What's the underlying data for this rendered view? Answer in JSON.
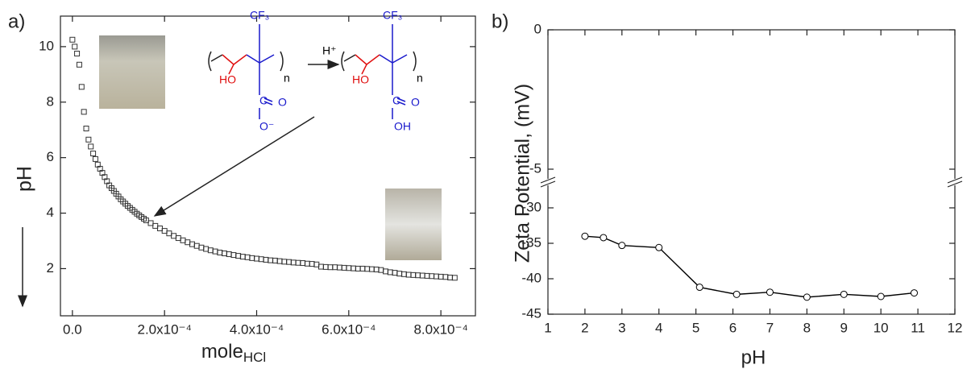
{
  "chart_data": [
    {
      "type": "scatter",
      "panel_label": "a)",
      "xlabel": {
        "text": "mole",
        "subscript": "HCl"
      },
      "ylabel": "pH",
      "xlim": [
        -2.6e-05,
        0.000875
      ],
      "ylim": [
        0.3,
        11.1
      ],
      "xticks": [
        {
          "value": 0,
          "label": "0.0"
        },
        {
          "value": 0.0002,
          "label": "2.0x10⁻⁴"
        },
        {
          "value": 0.0004,
          "label": "4.0x10⁻⁴"
        },
        {
          "value": 0.0006,
          "label": "6.0x10⁻⁴"
        },
        {
          "value": 0.0008,
          "label": "8.0x10⁻⁴"
        }
      ],
      "yticks": [
        2,
        4,
        6,
        8,
        10
      ],
      "marker": "square",
      "color": "#333333",
      "x": [
        0,
        5e-06,
        1e-05,
        1.5e-05,
        2e-05,
        2.5e-05,
        3e-05,
        3.5e-05,
        4e-05,
        4.5e-05,
        5e-05,
        5.5e-05,
        6e-05,
        6.5e-05,
        7e-05,
        7.5e-05,
        8e-05,
        8.5e-05,
        9e-05,
        9.5e-05,
        0.0001,
        0.000105,
        0.00011,
        0.000115,
        0.00012,
        0.000125,
        0.00013,
        0.000135,
        0.00014,
        0.000145,
        0.00015,
        0.000155,
        0.00016,
        0.00017,
        0.00018,
        0.00019,
        0.0002,
        0.00021,
        0.00022,
        0.00023,
        0.00024,
        0.00025,
        0.00026,
        0.00027,
        0.00028,
        0.00029,
        0.0003,
        0.00031,
        0.00032,
        0.00033,
        0.00034,
        0.00035,
        0.00036,
        0.00037,
        0.00038,
        0.00039,
        0.0004,
        0.00041,
        0.00042,
        0.00043,
        0.00044,
        0.00045,
        0.00046,
        0.00047,
        0.00048,
        0.00049,
        0.0005,
        0.00051,
        0.00052,
        0.00053,
        0.00054,
        0.00055,
        0.00056,
        0.00057,
        0.00058,
        0.00059,
        0.0006,
        0.00061,
        0.00062,
        0.00063,
        0.00064,
        0.00065,
        0.00066,
        0.00067,
        0.00068,
        0.00069,
        0.0007,
        0.00071,
        0.00072,
        0.00073,
        0.00074,
        0.00075,
        0.00076,
        0.00077,
        0.00078,
        0.00079,
        0.0008,
        0.00081,
        0.00082,
        0.00083
      ],
      "values": [
        10.25,
        10.0,
        9.75,
        9.35,
        8.55,
        7.65,
        7.05,
        6.65,
        6.4,
        6.15,
        5.95,
        5.75,
        5.6,
        5.45,
        5.3,
        5.15,
        5.0,
        4.9,
        4.8,
        4.7,
        4.6,
        4.5,
        4.42,
        4.34,
        4.26,
        4.19,
        4.12,
        4.05,
        3.98,
        3.92,
        3.86,
        3.8,
        3.74,
        3.64,
        3.54,
        3.45,
        3.36,
        3.27,
        3.18,
        3.1,
        3.02,
        2.95,
        2.88,
        2.82,
        2.76,
        2.71,
        2.66,
        2.62,
        2.58,
        2.55,
        2.52,
        2.49,
        2.46,
        2.43,
        2.41,
        2.38,
        2.36,
        2.34,
        2.32,
        2.3,
        2.29,
        2.27,
        2.25,
        2.24,
        2.22,
        2.21,
        2.2,
        2.18,
        2.17,
        2.15,
        2.07,
        2.06,
        2.05,
        2.05,
        2.04,
        2.03,
        2.02,
        2.01,
        2.0,
        2.0,
        1.99,
        1.98,
        1.97,
        1.95,
        1.9,
        1.87,
        1.85,
        1.82,
        1.8,
        1.78,
        1.77,
        1.76,
        1.75,
        1.74,
        1.73,
        1.72,
        1.71,
        1.7,
        1.68,
        1.67
      ],
      "annotations": [
        {
          "text": "CF₃",
          "color": "#1a1acc"
        },
        {
          "text": "HO",
          "color": "#e01010"
        },
        {
          "text": "C",
          "color": "#1a1acc"
        },
        {
          "text": "O",
          "color": "#1a1acc"
        },
        {
          "text": "O⁻",
          "color": "#1a1acc"
        },
        {
          "text": "n",
          "color": "#000000"
        },
        {
          "text": "H⁺",
          "color": "#000000"
        },
        {
          "text": "CF₃",
          "color": "#1a1acc"
        },
        {
          "text": "HO",
          "color": "#e01010"
        },
        {
          "text": "C",
          "color": "#1a1acc"
        },
        {
          "text": "O",
          "color": "#1a1acc"
        },
        {
          "text": "OH",
          "color": "#1a1acc"
        },
        {
          "text": "n",
          "color": "#000000"
        }
      ]
    },
    {
      "type": "line",
      "panel_label": "b)",
      "xlabel": "pH",
      "ylabel": "Zeta Potential, (mV)",
      "xlim": [
        1,
        12
      ],
      "ylim": [
        -45,
        0
      ],
      "ybreak": [
        -30,
        -5
      ],
      "xticks": [
        1,
        2,
        3,
        4,
        5,
        6,
        7,
        8,
        9,
        10,
        11,
        12
      ],
      "yticks": [
        0,
        -5,
        -30,
        -35,
        -40,
        -45
      ],
      "marker": "circle",
      "color": "#000000",
      "x": [
        2,
        2.5,
        3,
        4,
        5.1,
        6.1,
        7,
        8,
        9,
        10,
        10.9
      ],
      "values": [
        -34.0,
        -34.2,
        -35.3,
        -35.6,
        -41.2,
        -42.2,
        -41.9,
        -42.6,
        -42.2,
        -42.5,
        -42.0
      ]
    }
  ]
}
